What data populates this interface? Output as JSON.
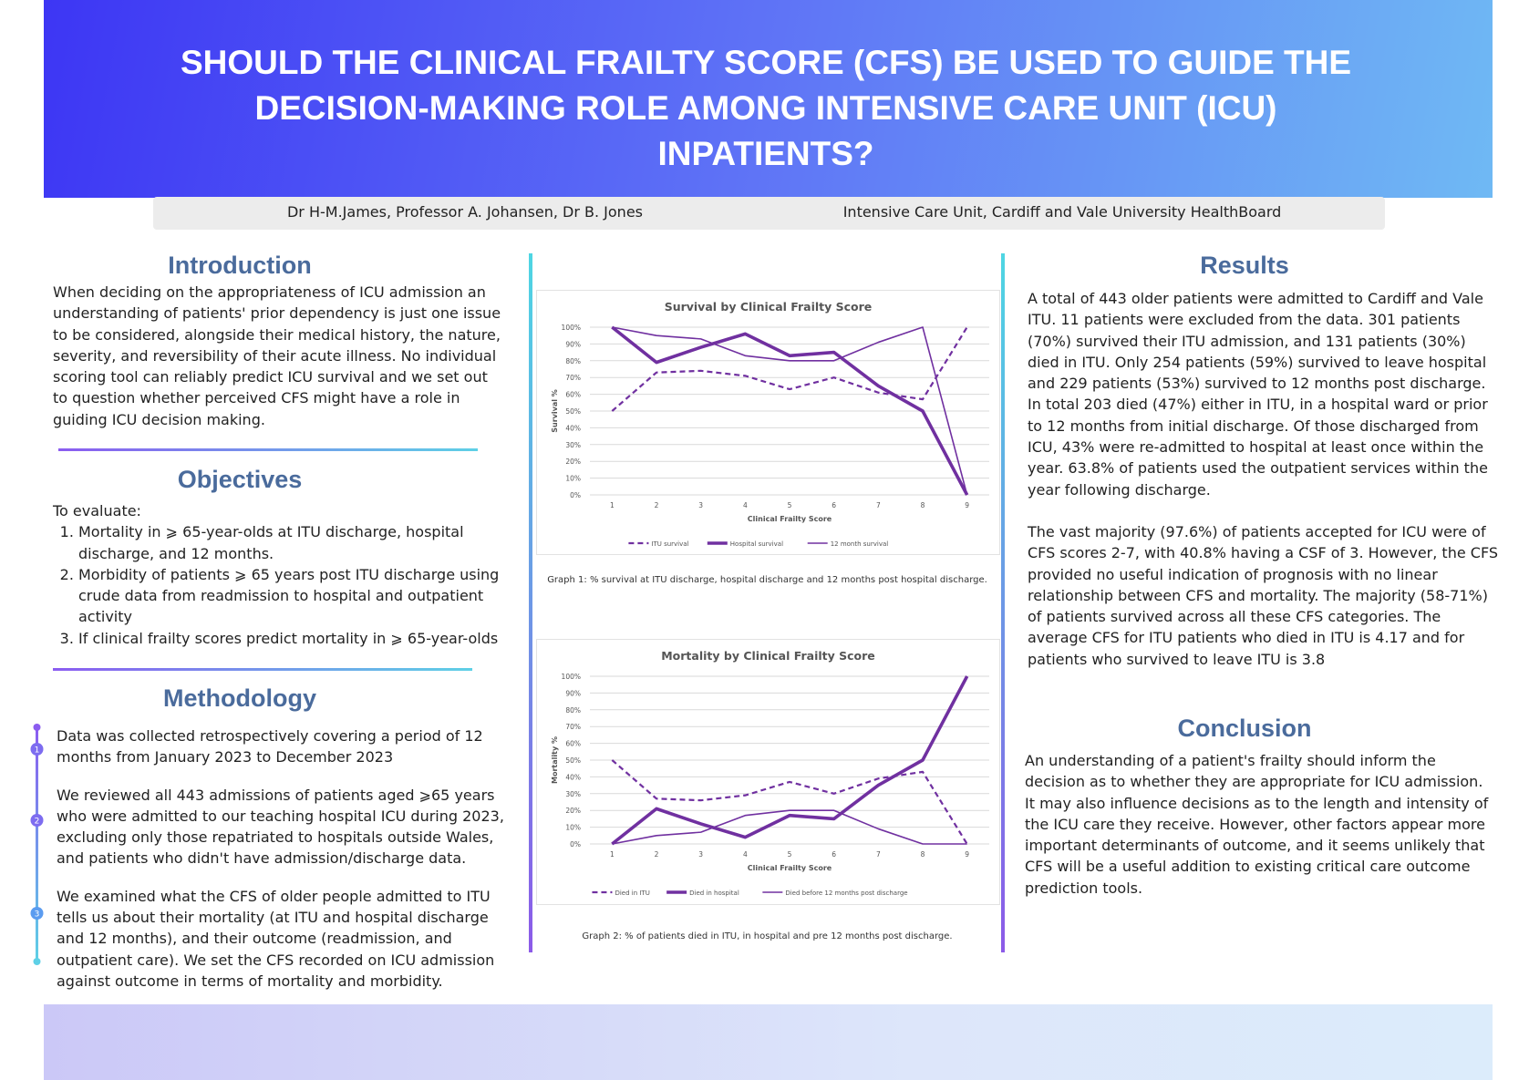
{
  "header": {
    "title": "SHOULD THE CLINICAL FRAILTY SCORE (CFS) BE USED TO GUIDE THE DECISION-MAKING ROLE AMONG INTENSIVE CARE UNIT (ICU) INPATIENTS?",
    "authors": "Dr H-M.James, Professor A. Johansen, Dr B. Jones",
    "affiliation": "Intensive Care Unit, Cardiff and Vale University HealthBoard"
  },
  "introduction": {
    "heading": "Introduction",
    "text": "When deciding on the appropriateness of ICU admission an understanding of patients' prior dependency is just one issue to be considered, alongside their medical history, the nature, severity, and reversibility of their acute illness. No individual scoring tool can reliably predict ICU survival and we set out to question whether perceived CFS might have a role in guiding ICU decision making."
  },
  "objectives": {
    "heading": "Objectives",
    "lead": "To evaluate:",
    "items": [
      "Mortality in ⩾ 65-year-olds at ITU discharge, hospital discharge, and 12 months.",
      "Morbidity of patients ⩾ 65 years post ITU discharge using crude data from readmission to hospital and outpatient activity",
      "If clinical frailty scores predict mortality in ⩾ 65-year-olds"
    ]
  },
  "methodology": {
    "heading": "Methodology",
    "steps": [
      {
        "number": "1",
        "text": "Data was collected retrospectively covering a period of 12 months from January 2023 to December 2023"
      },
      {
        "number": "2",
        "text": "We reviewed all 443 admissions of patients aged ⩾65 years who were admitted to our teaching hospital ICU during 2023, excluding only those repatriated to hospitals outside Wales, and patients who didn't have admission/discharge data."
      },
      {
        "number": "3",
        "text": "We examined what the CFS of older people admitted to ITU tells us about their mortality (at ITU and hospital discharge and 12 months), and their outcome (readmission, and outpatient care). We set the CFS recorded on ICU admission against outcome in terms of mortality and morbidity."
      }
    ]
  },
  "results": {
    "heading": "Results",
    "paragraphs": [
      "A total of 443 older patients were admitted to Cardiff and Vale ITU. 11 patients were excluded from the data. 301 patients (70%) survived their ITU admission, and 131 patients (30%) died in ITU. Only 254 patients (59%) survived to leave hospital and 229 patients (53%) survived to 12 months post discharge. In total 203 died (47%) either in ITU, in a hospital ward or prior to 12 months from initial discharge. Of those discharged from ICU, 43% were re-admitted to hospital at least once within the year. 63.8% of patients used the outpatient services within the year following discharge.",
      "The vast majority (97.6%) of patients accepted for ICU were of CFS scores 2-7, with 40.8% having a CSF of 3. However, the CFS provided no useful indication of prognosis with no linear relationship between CFS and mortality. The majority (58-71%) of patients survived across all these CFS categories. The average CFS for ITU patients who died in ITU is 4.17 and for patients who survived to leave ITU is 3.8"
    ]
  },
  "conclusion": {
    "heading": "Conclusion",
    "text": "An understanding of a patient's frailty should inform the decision as to whether they are appropriate for ICU admission. It may also influence decisions as to the length and intensity of the ICU care they receive. However, other factors appear more important determinants of outcome, and it seems unlikely that CFS will be a useful addition to existing critical care outcome prediction tools."
  },
  "chart_data": [
    {
      "type": "line",
      "title": "Survival by Clinical Frailty Score",
      "x_label": "Clinical Frailty Score",
      "y_label": "Survival %",
      "caption": "Graph 1: % survival at ITU discharge, hospital discharge and 12 months post hospital discharge.",
      "categories": [
        "1",
        "2",
        "3",
        "4",
        "5",
        "6",
        "7",
        "8",
        "9"
      ],
      "ylim": [
        0,
        100
      ],
      "yticks": [
        {
          "value": 0,
          "label": "0%"
        },
        {
          "value": 10,
          "label": "10%"
        },
        {
          "value": 20,
          "label": "20%"
        },
        {
          "value": 30,
          "label": "30%"
        },
        {
          "value": 40,
          "label": "40%"
        },
        {
          "value": 50,
          "label": "50%"
        },
        {
          "value": 60,
          "label": "60%"
        },
        {
          "value": 70,
          "label": "70%"
        },
        {
          "value": 80,
          "label": "80%"
        },
        {
          "value": 90,
          "label": "90%"
        },
        {
          "value": 100,
          "label": "100%"
        }
      ],
      "grid": true,
      "legend": "bottom",
      "series": [
        {
          "name": "ITU survival",
          "color": "#7030a0",
          "line_style": "dashed",
          "values": [
            50,
            73,
            74,
            71,
            63,
            70,
            61,
            57,
            100
          ]
        },
        {
          "name": "Hospital survival",
          "color": "#7030a0",
          "line_style": "bold",
          "values": [
            100,
            79,
            88,
            96,
            83,
            85,
            65,
            50,
            0
          ]
        },
        {
          "name": "12 month survival",
          "color": "#7030a0",
          "line_style": "thin",
          "values": [
            100,
            95,
            93,
            83,
            80,
            80,
            91,
            100,
            0
          ]
        }
      ]
    },
    {
      "type": "line",
      "title": "Mortality by Clinical Frailty Score",
      "x_label": "Clinical Frailty Score",
      "y_label": "Mortality %",
      "caption": "Graph 2: % of patients died in ITU, in hospital and pre 12 months post discharge.",
      "categories": [
        "1",
        "2",
        "3",
        "4",
        "5",
        "6",
        "7",
        "8",
        "9"
      ],
      "ylim": [
        0,
        100
      ],
      "yticks": [
        {
          "value": 0,
          "label": "0%"
        },
        {
          "value": 10,
          "label": "10%"
        },
        {
          "value": 20,
          "label": "20%"
        },
        {
          "value": 30,
          "label": "30%"
        },
        {
          "value": 40,
          "label": "40%"
        },
        {
          "value": 50,
          "label": "50%"
        },
        {
          "value": 60,
          "label": "60%"
        },
        {
          "value": 70,
          "label": "70%"
        },
        {
          "value": 80,
          "label": "80%"
        },
        {
          "value": 90,
          "label": "90%"
        },
        {
          "value": 100,
          "label": "100%"
        }
      ],
      "grid": true,
      "legend": "bottom",
      "series": [
        {
          "name": "Died in ITU",
          "color": "#7030a0",
          "line_style": "dashed",
          "values": [
            50,
            27,
            26,
            29,
            37,
            30,
            39,
            43,
            0
          ]
        },
        {
          "name": "Died in hospital",
          "color": "#7030a0",
          "line_style": "bold",
          "values": [
            0,
            21,
            12,
            4,
            17,
            15,
            35,
            50,
            100
          ]
        },
        {
          "name": "Died before 12 months post discharge",
          "color": "#7030a0",
          "line_style": "thin",
          "values": [
            0,
            5,
            7,
            17,
            20,
            20,
            9,
            0,
            0
          ]
        }
      ]
    }
  ]
}
